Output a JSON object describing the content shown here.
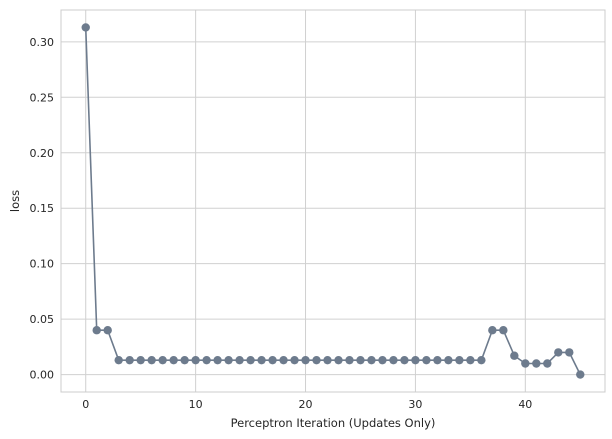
{
  "chart_data": {
    "type": "line",
    "title": "",
    "xlabel": "Perceptron Iteration (Updates Only)",
    "ylabel": "loss",
    "xlim": [
      -2.25,
      47.25
    ],
    "ylim": [
      -0.0157,
      0.3287
    ],
    "grid": true,
    "legend": "none",
    "x_ticks": [
      0,
      10,
      20,
      30,
      40
    ],
    "x_tick_labels": [
      "0",
      "10",
      "20",
      "30",
      "40"
    ],
    "y_ticks": [
      0.0,
      0.05,
      0.1,
      0.15,
      0.2,
      0.25,
      0.3
    ],
    "y_tick_labels": [
      "0.00",
      "0.05",
      "0.10",
      "0.15",
      "0.20",
      "0.25",
      "0.30"
    ],
    "colors": {
      "line": "#6d7b8d",
      "grid": "#d0d0d0",
      "frame": "#cccccc"
    },
    "series": [
      {
        "x": [
          0,
          1,
          2,
          3,
          4,
          5,
          6,
          7,
          8,
          9,
          10,
          11,
          12,
          13,
          14,
          15,
          16,
          17,
          18,
          19,
          20,
          21,
          22,
          23,
          24,
          25,
          26,
          27,
          28,
          29,
          30,
          31,
          32,
          33,
          34,
          35,
          36,
          37,
          38,
          39,
          40,
          41,
          42,
          43,
          44,
          45
        ],
        "values": [
          0.313,
          0.04,
          0.04,
          0.013,
          0.013,
          0.013,
          0.013,
          0.013,
          0.013,
          0.013,
          0.013,
          0.013,
          0.013,
          0.013,
          0.013,
          0.013,
          0.013,
          0.013,
          0.013,
          0.013,
          0.013,
          0.013,
          0.013,
          0.013,
          0.013,
          0.013,
          0.013,
          0.013,
          0.013,
          0.013,
          0.013,
          0.013,
          0.013,
          0.013,
          0.013,
          0.013,
          0.013,
          0.04,
          0.04,
          0.017,
          0.01,
          0.01,
          0.01,
          0.02,
          0.02,
          0.0
        ]
      }
    ]
  }
}
